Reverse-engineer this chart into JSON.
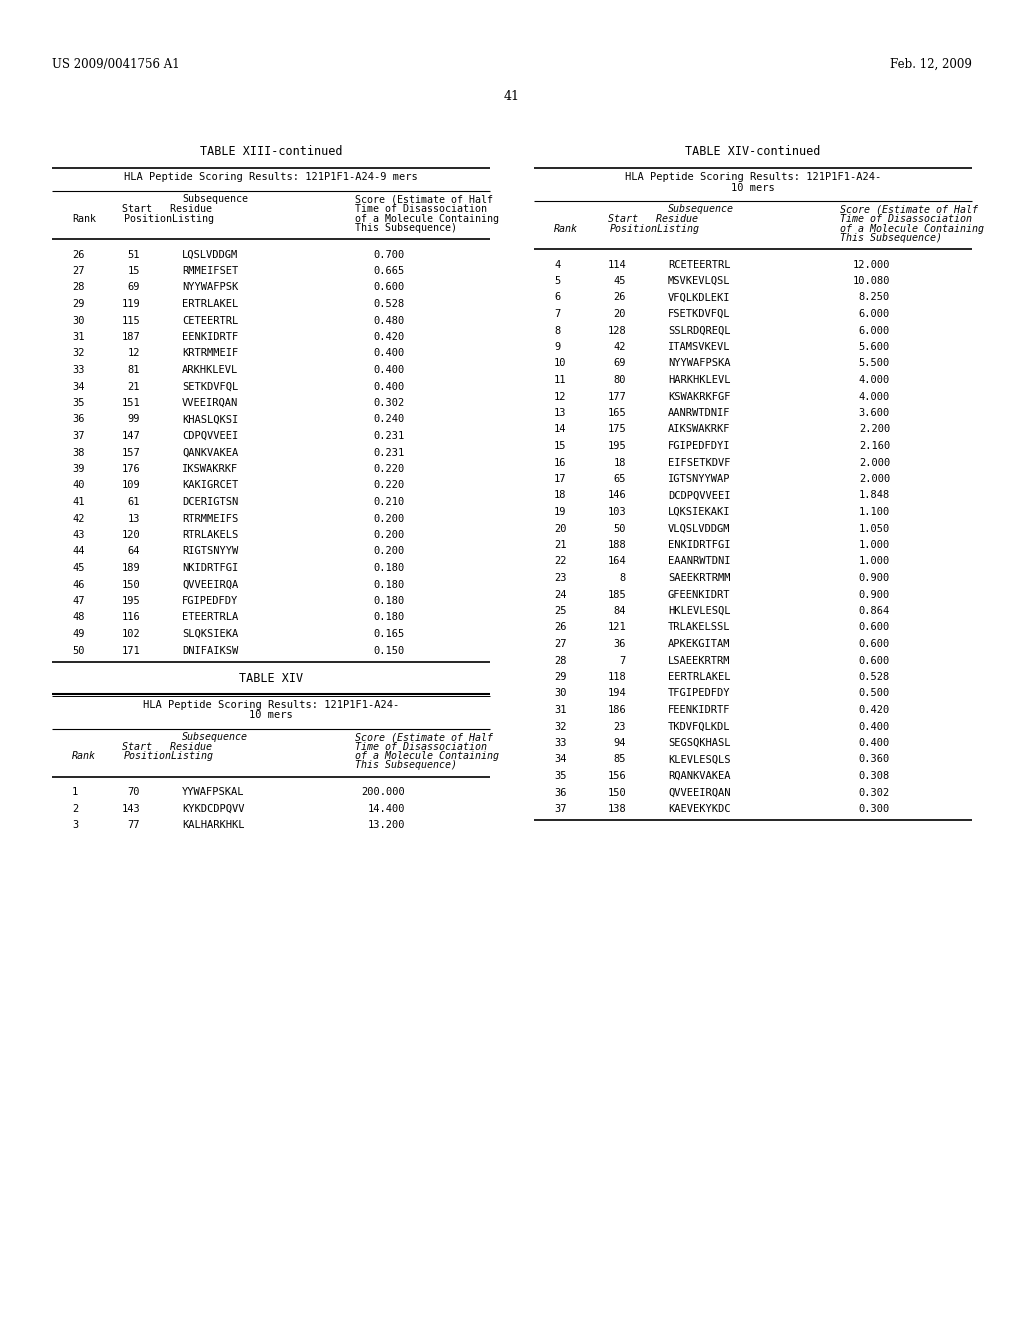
{
  "header_left": "US 2009/0041756 A1",
  "header_right": "Feb. 12, 2009",
  "page_number": "41",
  "table13_title": "TABLE XIII-continued",
  "table13_subtitle": "HLA Peptide Scoring Results: 121P1F1-A24-9 mers",
  "table13_data": [
    [
      "26",
      "51",
      "LQSLVDDGM",
      "0.700"
    ],
    [
      "27",
      "15",
      "RMMEIFSET",
      "0.665"
    ],
    [
      "28",
      "69",
      "NYYWAFPSK",
      "0.600"
    ],
    [
      "29",
      "119",
      "ERTRLAKEL",
      "0.528"
    ],
    [
      "30",
      "115",
      "CETEERTRL",
      "0.480"
    ],
    [
      "31",
      "187",
      "EENKIDRTF",
      "0.420"
    ],
    [
      "32",
      "12",
      "KRTRMMEIF",
      "0.400"
    ],
    [
      "33",
      "81",
      "ARKHKLEVL",
      "0.400"
    ],
    [
      "34",
      "21",
      "SETKDVFQL",
      "0.400"
    ],
    [
      "35",
      "151",
      "VVEEIRQAN",
      "0.302"
    ],
    [
      "36",
      "99",
      "KHASLQKSI",
      "0.240"
    ],
    [
      "37",
      "147",
      "CDPQVVEEI",
      "0.231"
    ],
    [
      "38",
      "157",
      "QANKVAKEA",
      "0.231"
    ],
    [
      "39",
      "176",
      "IKSWAKRKF",
      "0.220"
    ],
    [
      "40",
      "109",
      "KAKIGRCET",
      "0.220"
    ],
    [
      "41",
      "61",
      "DCERIGTSN",
      "0.210"
    ],
    [
      "42",
      "13",
      "RTRMMEIFS",
      "0.200"
    ],
    [
      "43",
      "120",
      "RTRLAKELS",
      "0.200"
    ],
    [
      "44",
      "64",
      "RIGTSNYYW",
      "0.200"
    ],
    [
      "45",
      "189",
      "NKIDRTFGI",
      "0.180"
    ],
    [
      "46",
      "150",
      "QVVEEIRQA",
      "0.180"
    ],
    [
      "47",
      "195",
      "FGIPEDFDY",
      "0.180"
    ],
    [
      "48",
      "116",
      "ETEERTRLA",
      "0.180"
    ],
    [
      "49",
      "102",
      "SLQKSIEKA",
      "0.165"
    ],
    [
      "50",
      "171",
      "DNIFAIKSW",
      "0.150"
    ]
  ],
  "table14_title": "TABLE XIV",
  "table14_data_left": [
    [
      "1",
      "70",
      "YYWAFPSKAL",
      "200.000"
    ],
    [
      "2",
      "143",
      "KYKDCDPQVV",
      "14.400"
    ],
    [
      "3",
      "77",
      "KALHARKHKL",
      "13.200"
    ]
  ],
  "table14_continued_title": "TABLE XIV-continued",
  "table14_data_right": [
    [
      "4",
      "114",
      "RCETEERTRL",
      "12.000"
    ],
    [
      "5",
      "45",
      "MSVKEVLQSL",
      "10.080"
    ],
    [
      "6",
      "26",
      "VFQLKDLEKI",
      "8.250"
    ],
    [
      "7",
      "20",
      "FSETKDVFQL",
      "6.000"
    ],
    [
      "8",
      "128",
      "SSLRDQREQL",
      "6.000"
    ],
    [
      "9",
      "42",
      "ITAMSVKEVL",
      "5.600"
    ],
    [
      "10",
      "69",
      "NYYWAFPSKA",
      "5.500"
    ],
    [
      "11",
      "80",
      "HARKHKLEVL",
      "4.000"
    ],
    [
      "12",
      "177",
      "KSWAKRKFGF",
      "4.000"
    ],
    [
      "13",
      "165",
      "AANRWTDNIF",
      "3.600"
    ],
    [
      "14",
      "175",
      "AIKSWAKRKF",
      "2.200"
    ],
    [
      "15",
      "195",
      "FGIPEDFDYI",
      "2.160"
    ],
    [
      "16",
      "18",
      "EIFSETKDVF",
      "2.000"
    ],
    [
      "17",
      "65",
      "IGTSNYYWAP",
      "2.000"
    ],
    [
      "18",
      "146",
      "DCDPQVVEEI",
      "1.848"
    ],
    [
      "19",
      "103",
      "LQKSIEKAKI",
      "1.100"
    ],
    [
      "20",
      "50",
      "VLQSLVDDGM",
      "1.050"
    ],
    [
      "21",
      "188",
      "ENKIDRTFGI",
      "1.000"
    ],
    [
      "22",
      "164",
      "EAANRWTDNI",
      "1.000"
    ],
    [
      "23",
      "8",
      "SAEEKRTRMM",
      "0.900"
    ],
    [
      "24",
      "185",
      "GFEENKIDRT",
      "0.900"
    ],
    [
      "25",
      "84",
      "HKLEVLESQL",
      "0.864"
    ],
    [
      "26",
      "121",
      "TRLAKELSSL",
      "0.600"
    ],
    [
      "27",
      "36",
      "APKEKGITAM",
      "0.600"
    ],
    [
      "28",
      "7",
      "LSAEEKRTRM",
      "0.600"
    ],
    [
      "29",
      "118",
      "EERTRLAKEL",
      "0.528"
    ],
    [
      "30",
      "194",
      "TFGIPEDFDY",
      "0.500"
    ],
    [
      "31",
      "186",
      "FEENKIDRTF",
      "0.420"
    ],
    [
      "32",
      "23",
      "TKDVFQLKDL",
      "0.400"
    ],
    [
      "33",
      "94",
      "SEGSQKHASL",
      "0.400"
    ],
    [
      "34",
      "85",
      "KLEVLESQLS",
      "0.360"
    ],
    [
      "35",
      "156",
      "RQANKVAKEA",
      "0.308"
    ],
    [
      "36",
      "150",
      "QVVEEIRQAN",
      "0.302"
    ],
    [
      "37",
      "138",
      "KAEVEKYKDC",
      "0.300"
    ]
  ],
  "bg_color": "#ffffff",
  "text_color": "#000000"
}
